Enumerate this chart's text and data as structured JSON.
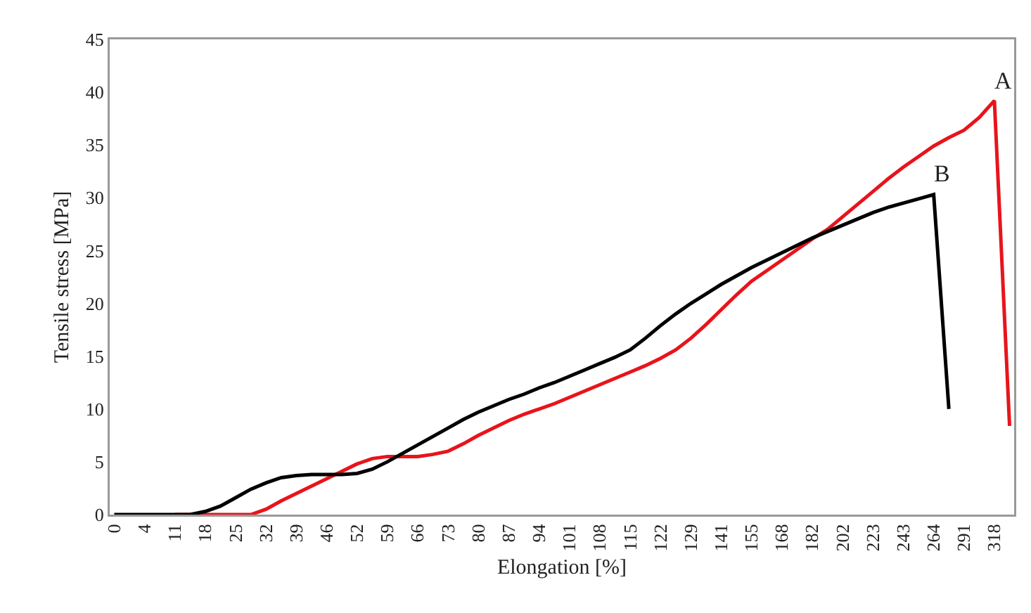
{
  "chart_data": {
    "type": "line",
    "xlabel": "Elongation [%]",
    "ylabel": "Tensile stress [MPa]",
    "categories": [
      "0",
      null,
      "4",
      null,
      "11",
      null,
      "18",
      null,
      "25",
      null,
      "32",
      null,
      "39",
      null,
      "46",
      null,
      "52",
      null,
      "59",
      null,
      "66",
      null,
      "73",
      null,
      "80",
      null,
      "87",
      null,
      "94",
      null,
      "101",
      null,
      "108",
      null,
      "115",
      null,
      "122",
      null,
      "129",
      null,
      "141",
      null,
      "155",
      null,
      "168",
      null,
      "182",
      null,
      "202",
      null,
      "223",
      null,
      "243",
      null,
      "264",
      null,
      "291",
      null,
      "318",
      null
    ],
    "series": [
      {
        "name": "A",
        "color": "#e8141b",
        "values": [
          null,
          null,
          null,
          null,
          0,
          0,
          0,
          0,
          0,
          0,
          0.5,
          1.3,
          2.0,
          2.7,
          3.4,
          4.1,
          4.8,
          5.3,
          5.5,
          5.5,
          5.5,
          5.7,
          6.0,
          6.7,
          7.5,
          8.2,
          8.9,
          9.5,
          10.0,
          10.5,
          11.1,
          11.7,
          12.3,
          12.9,
          13.5,
          14.1,
          14.8,
          15.6,
          16.7,
          18.0,
          19.4,
          20.8,
          22.1,
          23.1,
          24.1,
          25.1,
          26.1,
          27.0,
          28.2,
          29.4,
          30.6,
          31.8,
          32.9,
          33.9,
          34.9,
          35.7,
          36.4,
          37.6,
          39.2,
          8.4
        ]
      },
      {
        "name": "B",
        "color": "#000000",
        "values": [
          0,
          0,
          0,
          0,
          0,
          0,
          0.3,
          0.8,
          1.6,
          2.4,
          3.0,
          3.5,
          3.7,
          3.8,
          3.8,
          3.8,
          3.9,
          4.3,
          5.0,
          5.8,
          6.6,
          7.4,
          8.2,
          9.0,
          9.7,
          10.3,
          10.9,
          11.4,
          12.0,
          12.5,
          13.1,
          13.7,
          14.3,
          14.9,
          15.6,
          16.7,
          17.9,
          19.0,
          20.0,
          20.9,
          21.8,
          22.6,
          23.4,
          24.1,
          24.8,
          25.5,
          26.2,
          26.8,
          27.4,
          28.0,
          28.6,
          29.1,
          29.5,
          29.9,
          30.3,
          10.0,
          null,
          null,
          null,
          null
        ]
      }
    ],
    "ylim": [
      0,
      45
    ],
    "yticks": [
      0,
      5,
      10,
      15,
      20,
      25,
      30,
      35,
      40,
      45
    ],
    "grid": false,
    "legend": false,
    "line_style": "solid",
    "marker": "none"
  }
}
